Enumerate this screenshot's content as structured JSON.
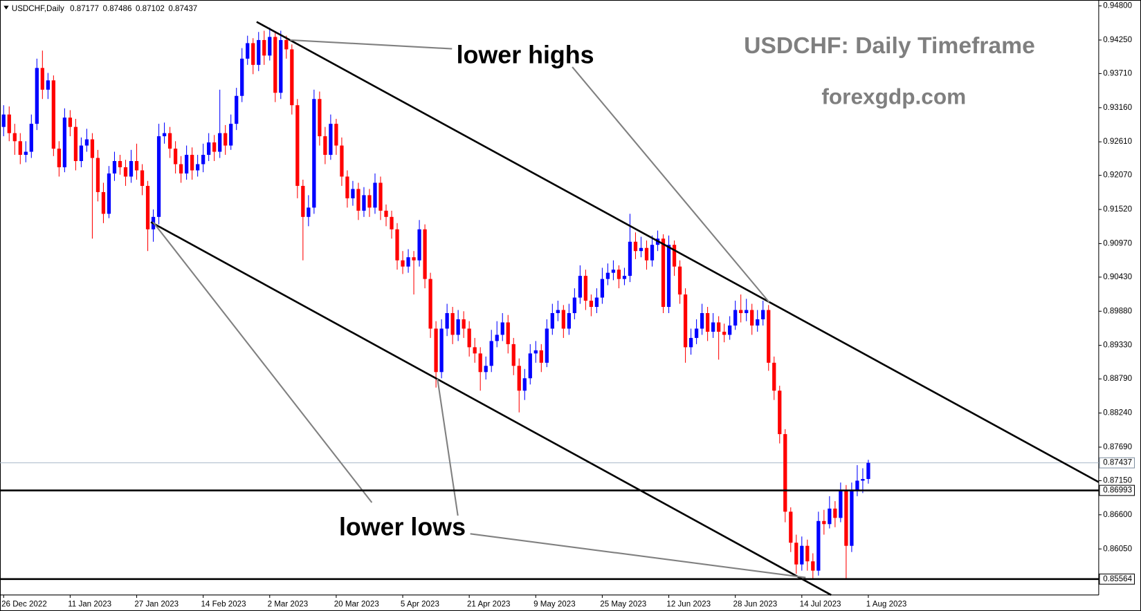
{
  "chart_data": {
    "type": "candlestick",
    "symbol": "USDCHF,Daily",
    "title": "USDCHF: Daily Timeframe",
    "subtitle": "forexgdp.com",
    "annotations": [
      "lower highs",
      "lower lows"
    ],
    "up_color": "#0000ff",
    "down_color": "#ff0000",
    "ylim": [
      0.85308,
      0.9486
    ],
    "yticks": [
      {
        "value": 0.948,
        "label": "0.94800"
      },
      {
        "value": 0.9425,
        "label": "0.94250"
      },
      {
        "value": 0.9371,
        "label": "0.93710"
      },
      {
        "value": 0.9316,
        "label": "0.93160"
      },
      {
        "value": 0.9261,
        "label": "0.92610"
      },
      {
        "value": 0.9207,
        "label": "0.92070"
      },
      {
        "value": 0.9152,
        "label": "0.91520"
      },
      {
        "value": 0.9097,
        "label": "0.90970"
      },
      {
        "value": 0.9043,
        "label": "0.90430"
      },
      {
        "value": 0.8988,
        "label": "0.89880"
      },
      {
        "value": 0.8933,
        "label": "0.89330"
      },
      {
        "value": 0.8879,
        "label": "0.88790"
      },
      {
        "value": 0.8824,
        "label": "0.88240"
      },
      {
        "value": 0.8769,
        "label": "0.87690"
      },
      {
        "value": 0.8715,
        "label": "0.87150"
      },
      {
        "value": 0.866,
        "label": "0.86600"
      },
      {
        "value": 0.8605,
        "label": "0.86050"
      }
    ],
    "levels": [
      0.86993,
      0.85564
    ],
    "categories": [
      "26 Dec 2022",
      null,
      null,
      null,
      null,
      null,
      null,
      null,
      null,
      null,
      null,
      null,
      "11 Jan 2023",
      null,
      null,
      null,
      null,
      null,
      null,
      null,
      null,
      null,
      null,
      null,
      "27 Jan 2023",
      null,
      null,
      null,
      null,
      null,
      null,
      null,
      null,
      null,
      null,
      null,
      "14 Feb 2023",
      null,
      null,
      null,
      null,
      null,
      null,
      null,
      null,
      null,
      null,
      null,
      "2 Mar 2023",
      null,
      null,
      null,
      null,
      null,
      null,
      null,
      null,
      null,
      null,
      null,
      "20 Mar 2023",
      null,
      null,
      null,
      null,
      null,
      null,
      null,
      null,
      null,
      null,
      null,
      "5 Apr 2023",
      null,
      null,
      null,
      null,
      null,
      null,
      null,
      null,
      null,
      null,
      null,
      "21 Apr 2023",
      null,
      null,
      null,
      null,
      null,
      null,
      null,
      null,
      null,
      null,
      null,
      "9 May 2023",
      null,
      null,
      null,
      null,
      null,
      null,
      null,
      null,
      null,
      null,
      null,
      "25 May 2023",
      null,
      null,
      null,
      null,
      null,
      null,
      null,
      null,
      null,
      null,
      null,
      "12 Jun 2023",
      null,
      null,
      null,
      null,
      null,
      null,
      null,
      null,
      null,
      null,
      null,
      "28 Jun 2023",
      null,
      null,
      null,
      null,
      null,
      null,
      null,
      null,
      null,
      null,
      null,
      "14 Jul 2023",
      null,
      null,
      null,
      null,
      null,
      null,
      null,
      null,
      null,
      null,
      null,
      "1 Aug 2023"
    ],
    "ohlc": [
      [
        0.9285,
        0.932,
        0.927,
        0.9305
      ],
      [
        0.9305,
        0.9318,
        0.9262,
        0.9275
      ],
      [
        0.9275,
        0.929,
        0.924,
        0.9262
      ],
      [
        0.9262,
        0.9275,
        0.9225,
        0.924
      ],
      [
        0.924,
        0.9262,
        0.9228,
        0.9245
      ],
      [
        0.9245,
        0.9305,
        0.9235,
        0.929
      ],
      [
        0.929,
        0.9395,
        0.928,
        0.938
      ],
      [
        0.938,
        0.9408,
        0.933,
        0.9345
      ],
      [
        0.9345,
        0.9372,
        0.933,
        0.936
      ],
      [
        0.936,
        0.9368,
        0.9238,
        0.925
      ],
      [
        0.925,
        0.9262,
        0.9205,
        0.922
      ],
      [
        0.922,
        0.9315,
        0.9212,
        0.93
      ],
      [
        0.93,
        0.9312,
        0.927,
        0.9285
      ],
      [
        0.9285,
        0.9298,
        0.9215,
        0.923
      ],
      [
        0.923,
        0.9268,
        0.922,
        0.9255
      ],
      [
        0.9255,
        0.9282,
        0.9245,
        0.9265
      ],
      [
        0.9265,
        0.9275,
        0.9105,
        0.9235
      ],
      [
        0.9235,
        0.9248,
        0.9165,
        0.918
      ],
      [
        0.918,
        0.9195,
        0.913,
        0.9145
      ],
      [
        0.9145,
        0.9222,
        0.9138,
        0.921
      ],
      [
        0.921,
        0.9245,
        0.9198,
        0.923
      ],
      [
        0.923,
        0.924,
        0.9208,
        0.922
      ],
      [
        0.922,
        0.9232,
        0.919,
        0.9205
      ],
      [
        0.9205,
        0.9248,
        0.9195,
        0.923
      ],
      [
        0.923,
        0.9258,
        0.92,
        0.9215
      ],
      [
        0.9215,
        0.9225,
        0.9175,
        0.919
      ],
      [
        0.919,
        0.9198,
        0.9085,
        0.912
      ],
      [
        0.912,
        0.9152,
        0.91,
        0.914
      ],
      [
        0.914,
        0.929,
        0.9128,
        0.927
      ],
      [
        0.927,
        0.9292,
        0.9258,
        0.9275
      ],
      [
        0.9275,
        0.9285,
        0.9235,
        0.925
      ],
      [
        0.925,
        0.9262,
        0.921,
        0.9225
      ],
      [
        0.9225,
        0.9238,
        0.9195,
        0.921
      ],
      [
        0.921,
        0.9255,
        0.92,
        0.924
      ],
      [
        0.924,
        0.9252,
        0.92,
        0.9215
      ],
      [
        0.9215,
        0.924,
        0.9205,
        0.9225
      ],
      [
        0.9225,
        0.9258,
        0.9212,
        0.924
      ],
      [
        0.924,
        0.9275,
        0.923,
        0.926
      ],
      [
        0.926,
        0.9272,
        0.923,
        0.9245
      ],
      [
        0.9245,
        0.9345,
        0.9235,
        0.9275
      ],
      [
        0.9275,
        0.9288,
        0.924,
        0.9255
      ],
      [
        0.9255,
        0.9305,
        0.9248,
        0.929
      ],
      [
        0.929,
        0.9348,
        0.928,
        0.9335
      ],
      [
        0.9335,
        0.9412,
        0.9325,
        0.9395
      ],
      [
        0.9395,
        0.9432,
        0.9385,
        0.942
      ],
      [
        0.942,
        0.9428,
        0.937,
        0.9385
      ],
      [
        0.9385,
        0.9438,
        0.9375,
        0.9425
      ],
      [
        0.9425,
        0.944,
        0.9385,
        0.94
      ],
      [
        0.94,
        0.9445,
        0.9392,
        0.943
      ],
      [
        0.943,
        0.9438,
        0.9325,
        0.934
      ],
      [
        0.934,
        0.944,
        0.933,
        0.9425
      ],
      [
        0.9425,
        0.9432,
        0.9395,
        0.941
      ],
      [
        0.941,
        0.9418,
        0.9305,
        0.932
      ],
      [
        0.932,
        0.933,
        0.917,
        0.919
      ],
      [
        0.919,
        0.92,
        0.907,
        0.914
      ],
      [
        0.914,
        0.9175,
        0.9125,
        0.9155
      ],
      [
        0.9155,
        0.9345,
        0.9145,
        0.933
      ],
      [
        0.933,
        0.9342,
        0.9255,
        0.927
      ],
      [
        0.927,
        0.9285,
        0.9225,
        0.924
      ],
      [
        0.924,
        0.9305,
        0.9232,
        0.929
      ],
      [
        0.929,
        0.9298,
        0.924,
        0.9255
      ],
      [
        0.9255,
        0.9268,
        0.919,
        0.9205
      ],
      [
        0.9205,
        0.9215,
        0.9155,
        0.917
      ],
      [
        0.917,
        0.9198,
        0.9158,
        0.9185
      ],
      [
        0.9185,
        0.9195,
        0.9135,
        0.915
      ],
      [
        0.915,
        0.9188,
        0.914,
        0.9175
      ],
      [
        0.9175,
        0.9185,
        0.914,
        0.9155
      ],
      [
        0.9155,
        0.921,
        0.9145,
        0.9195
      ],
      [
        0.9195,
        0.9205,
        0.9135,
        0.915
      ],
      [
        0.915,
        0.916,
        0.9125,
        0.914
      ],
      [
        0.914,
        0.915,
        0.9105,
        0.912
      ],
      [
        0.912,
        0.913,
        0.9055,
        0.907
      ],
      [
        0.907,
        0.9085,
        0.9048,
        0.906
      ],
      [
        0.906,
        0.9088,
        0.905,
        0.9075
      ],
      [
        0.9075,
        0.9085,
        0.9015,
        0.907
      ],
      [
        0.907,
        0.9135,
        0.906,
        0.912
      ],
      [
        0.912,
        0.9128,
        0.9025,
        0.904
      ],
      [
        0.904,
        0.905,
        0.8945,
        0.896
      ],
      [
        0.896,
        0.8972,
        0.8865,
        0.889
      ],
      [
        0.889,
        0.8975,
        0.888,
        0.896
      ],
      [
        0.896,
        0.9,
        0.8948,
        0.8985
      ],
      [
        0.8985,
        0.8995,
        0.8935,
        0.895
      ],
      [
        0.895,
        0.899,
        0.894,
        0.8975
      ],
      [
        0.8975,
        0.8988,
        0.8945,
        0.896
      ],
      [
        0.896,
        0.8972,
        0.8915,
        0.893
      ],
      [
        0.893,
        0.8945,
        0.8905,
        0.892
      ],
      [
        0.892,
        0.893,
        0.886,
        0.889
      ],
      [
        0.889,
        0.8915,
        0.8878,
        0.89
      ],
      [
        0.89,
        0.8958,
        0.889,
        0.894
      ],
      [
        0.894,
        0.8972,
        0.893,
        0.895
      ],
      [
        0.895,
        0.8985,
        0.894,
        0.897
      ],
      [
        0.897,
        0.8982,
        0.892,
        0.8935
      ],
      [
        0.8935,
        0.8945,
        0.8885,
        0.89
      ],
      [
        0.89,
        0.8912,
        0.8825,
        0.886
      ],
      [
        0.886,
        0.8895,
        0.8845,
        0.888
      ],
      [
        0.888,
        0.8935,
        0.887,
        0.892
      ],
      [
        0.892,
        0.894,
        0.8905,
        0.8925
      ],
      [
        0.8925,
        0.8935,
        0.889,
        0.8905
      ],
      [
        0.8905,
        0.8975,
        0.8898,
        0.896
      ],
      [
        0.896,
        0.9,
        0.895,
        0.8985
      ],
      [
        0.8985,
        0.9005,
        0.8972,
        0.899
      ],
      [
        0.899,
        0.8998,
        0.8945,
        0.896
      ],
      [
        0.896,
        0.9,
        0.895,
        0.8985
      ],
      [
        0.8985,
        0.9025,
        0.8975,
        0.901
      ],
      [
        0.901,
        0.9062,
        0.9,
        0.9045
      ],
      [
        0.9045,
        0.9055,
        0.899,
        0.9005
      ],
      [
        0.9005,
        0.9015,
        0.898,
        0.8995
      ],
      [
        0.8995,
        0.9025,
        0.8985,
        0.901
      ],
      [
        0.901,
        0.9058,
        0.9,
        0.904
      ],
      [
        0.904,
        0.9065,
        0.903,
        0.905
      ],
      [
        0.905,
        0.907,
        0.9038,
        0.9055
      ],
      [
        0.9055,
        0.9062,
        0.9025,
        0.904
      ],
      [
        0.904,
        0.9058,
        0.903,
        0.9045
      ],
      [
        0.9045,
        0.9145,
        0.9035,
        0.91
      ],
      [
        0.91,
        0.9115,
        0.9072,
        0.9085
      ],
      [
        0.9085,
        0.9108,
        0.9075,
        0.909
      ],
      [
        0.909,
        0.9102,
        0.9055,
        0.907
      ],
      [
        0.907,
        0.911,
        0.906,
        0.9095
      ],
      [
        0.9095,
        0.9118,
        0.9085,
        0.9105
      ],
      [
        0.9105,
        0.9112,
        0.8985,
        0.8995
      ],
      [
        0.8995,
        0.911,
        0.8985,
        0.9095
      ],
      [
        0.9095,
        0.9102,
        0.9045,
        0.906
      ],
      [
        0.906,
        0.907,
        0.9,
        0.9015
      ],
      [
        0.9015,
        0.9025,
        0.8905,
        0.893
      ],
      [
        0.893,
        0.896,
        0.8918,
        0.8945
      ],
      [
        0.8945,
        0.8975,
        0.8935,
        0.896
      ],
      [
        0.896,
        0.9,
        0.895,
        0.8985
      ],
      [
        0.8985,
        0.8995,
        0.894,
        0.8955
      ],
      [
        0.8955,
        0.8985,
        0.8945,
        0.897
      ],
      [
        0.897,
        0.898,
        0.891,
        0.8955
      ],
      [
        0.8955,
        0.8968,
        0.8938,
        0.895
      ],
      [
        0.895,
        0.898,
        0.8942,
        0.8965
      ],
      [
        0.8965,
        0.9005,
        0.8958,
        0.899
      ],
      [
        0.899,
        0.9015,
        0.897,
        0.8985
      ],
      [
        0.8985,
        0.9008,
        0.8972,
        0.899
      ],
      [
        0.899,
        0.9,
        0.895,
        0.8965
      ],
      [
        0.8965,
        0.899,
        0.8955,
        0.8975
      ],
      [
        0.8975,
        0.9005,
        0.8965,
        0.899
      ],
      [
        0.899,
        0.8998,
        0.8892,
        0.8905
      ],
      [
        0.8905,
        0.8915,
        0.8845,
        0.886
      ],
      [
        0.886,
        0.8868,
        0.8775,
        0.879
      ],
      [
        0.879,
        0.8798,
        0.8648,
        0.8665
      ],
      [
        0.8665,
        0.8672,
        0.86,
        0.8615
      ],
      [
        0.8615,
        0.8628,
        0.8565,
        0.858
      ],
      [
        0.858,
        0.8625,
        0.857,
        0.861
      ],
      [
        0.861,
        0.862,
        0.857,
        0.8585
      ],
      [
        0.8585,
        0.8598,
        0.8556,
        0.857
      ],
      [
        0.857,
        0.8665,
        0.8562,
        0.865
      ],
      [
        0.865,
        0.8668,
        0.8628,
        0.8645
      ],
      [
        0.8645,
        0.869,
        0.8638,
        0.867
      ],
      [
        0.867,
        0.8682,
        0.864,
        0.8655
      ],
      [
        0.8655,
        0.8712,
        0.8648,
        0.87
      ],
      [
        0.87,
        0.8708,
        0.8556,
        0.861
      ],
      [
        0.861,
        0.8712,
        0.86,
        0.87
      ],
      [
        0.87,
        0.874,
        0.869,
        0.8715
      ],
      [
        0.8715,
        0.8735,
        0.8695,
        0.87177
      ],
      [
        0.87177,
        0.87486,
        0.87102,
        0.87437
      ]
    ]
  }
}
